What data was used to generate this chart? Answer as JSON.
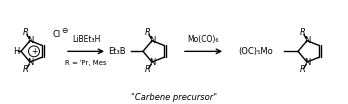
{
  "background": "#ffffff",
  "title_text": "\"Carbene precursor\"",
  "reagent1": "LiBEt₃H",
  "reagent2": "Mo(CO)₆",
  "product1_boron": "Et₃B",
  "product2_metal": "(OC)₅Mo",
  "R_label": "R = ⁱPr, Mes",
  "fig_width": 3.48,
  "fig_height": 1.04,
  "dpi": 100
}
